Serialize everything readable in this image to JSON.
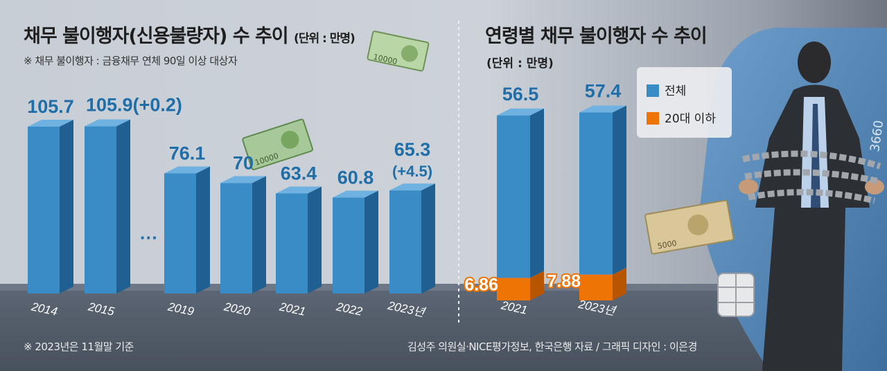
{
  "chart_data": [
    {
      "type": "bar",
      "title": "채무 불이행자(신용불량자) 수 추이",
      "unit_label": "(단위 : 만명)",
      "note": "※ 채무 불이행자 : 금융채무 연체 90일 이상 대상자",
      "categories": [
        "2014",
        "2015",
        "2019",
        "2020",
        "2021",
        "2022",
        "2023년"
      ],
      "values": [
        105.7,
        105.9,
        76.1,
        70,
        63.4,
        60.8,
        65.3
      ],
      "value_labels": [
        "105.7",
        "105.9",
        "76.1",
        "70",
        "63.4",
        "60.8",
        "65.3"
      ],
      "change_labels": [
        "",
        "(+0.2)",
        "",
        "",
        "",
        "",
        "(+4.5)"
      ],
      "gap_marker": "···"
    },
    {
      "type": "bar",
      "stacked": true,
      "title": "연령별 채무 불이행자 수 추이",
      "unit_label": "(단위 : 만명)",
      "categories": [
        "2021",
        "2023년"
      ],
      "series": [
        {
          "name": "전체",
          "values": [
            56.5,
            57.4
          ],
          "color": "#3a8cc6"
        },
        {
          "name": "20대 이하",
          "values": [
            6.86,
            7.88
          ],
          "color": "#ef7406"
        }
      ],
      "value_labels": {
        "total": [
          "56.5",
          "57.4"
        ],
        "youth": [
          "6.86",
          "7.88"
        ]
      },
      "legend_position": "top-right"
    }
  ],
  "footer": {
    "note": "※ 2023년은 11월말 기준",
    "source": "김성주 의원실·NICE평가정보, 한국은행 자료 / 그래픽 디자인 : 이은경"
  },
  "colors": {
    "bar_blue": "#3a8cc6",
    "bar_blue_side": "#1f5f91",
    "bar_blue_top": "#6fb2e1",
    "label_blue": "#1f6ea8",
    "orange": "#ef7406",
    "orange_side": "#b85503"
  },
  "decorations": [
    "banknote-icon",
    "banknote-icon",
    "banknote-icon",
    "credit-card-icon",
    "chained-man-icon"
  ]
}
